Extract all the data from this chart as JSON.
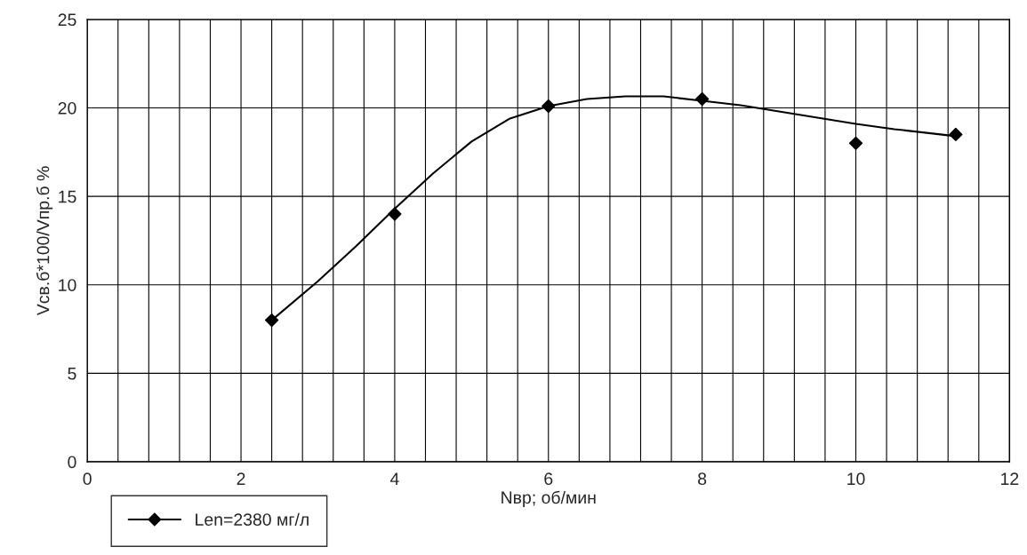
{
  "chart_data": {
    "type": "scatter",
    "xlabel": "Nвр; об/мин",
    "ylabel": "Vсв.б*100/Vпр.б %",
    "xlim": [
      0,
      12
    ],
    "ylim": [
      0,
      25
    ],
    "xticks": [
      0,
      {
        "value": 0.4,
        "label": null
      },
      {
        "value": 0.8,
        "label": null
      },
      {
        "value": 1.2,
        "label": null
      },
      {
        "value": 1.6,
        "label": null
      },
      2,
      {
        "value": 2.4,
        "label": null
      },
      {
        "value": 2.8,
        "label": null
      },
      {
        "value": 3.2,
        "label": null
      },
      {
        "value": 3.6,
        "label": null
      },
      4,
      {
        "value": 4.4,
        "label": null
      },
      {
        "value": 4.8,
        "label": null
      },
      {
        "value": 5.2,
        "label": null
      },
      {
        "value": 5.6,
        "label": null
      },
      6,
      {
        "value": 6.4,
        "label": null
      },
      {
        "value": 6.8,
        "label": null
      },
      {
        "value": 7.2,
        "label": null
      },
      {
        "value": 7.6,
        "label": null
      },
      8,
      {
        "value": 8.4,
        "label": null
      },
      {
        "value": 8.8,
        "label": null
      },
      {
        "value": 9.2,
        "label": null
      },
      {
        "value": 9.6,
        "label": null
      },
      10,
      {
        "value": 10.4,
        "label": null
      },
      {
        "value": 10.8,
        "label": null
      },
      {
        "value": 11.2,
        "label": null
      },
      {
        "value": 11.6,
        "label": null
      },
      12
    ],
    "yticks": [
      0,
      5,
      10,
      15,
      20,
      25
    ],
    "grid": true,
    "legend": "bottom left",
    "marker": "diamond",
    "series": [
      {
        "name": "Len=2380 мг/л",
        "color": "#000000",
        "x": [
          2.4,
          4,
          6,
          8,
          10,
          11.3
        ],
        "values": [
          8,
          14,
          20.1,
          20.5,
          18,
          18.5
        ]
      },
      {
        "type": "line",
        "color": "#000000",
        "marker": "none",
        "x": [
          2.4,
          3,
          3.5,
          4,
          4.5,
          5,
          5.5,
          6,
          6.5,
          7,
          7.5,
          8,
          8.5,
          9,
          9.5,
          10,
          10.5,
          11,
          11.3
        ],
        "values": [
          8,
          10.2,
          12.2,
          14.3,
          16.3,
          18.1,
          19.4,
          20.1,
          20.5,
          20.65,
          20.65,
          20.4,
          20.15,
          19.8,
          19.45,
          19.1,
          18.8,
          18.55,
          18.4
        ]
      }
    ]
  }
}
